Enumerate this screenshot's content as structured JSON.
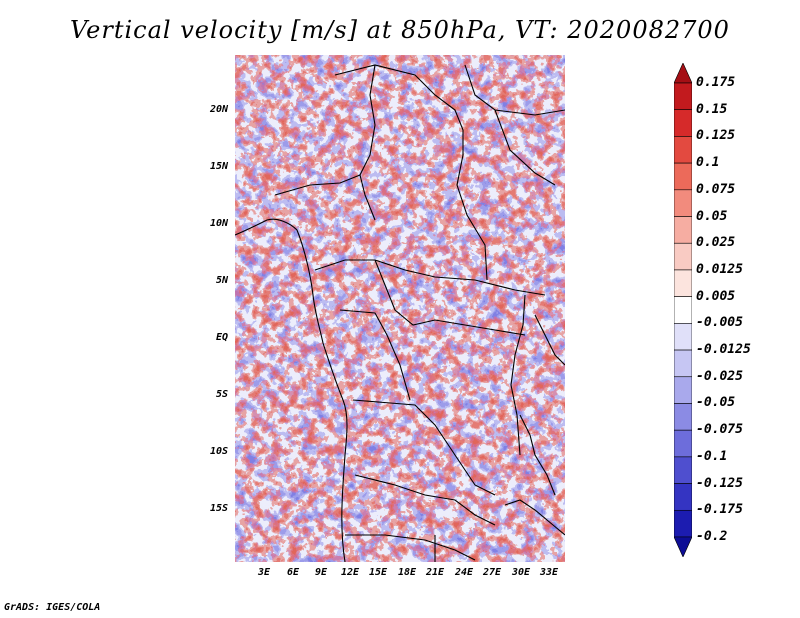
{
  "title": "Vertical velocity [m/s] at 850hPa, VT: 2020082700",
  "credit": "GrADS: IGES/COLA",
  "latitude_labels": [
    "20N",
    "15N",
    "10N",
    "5N",
    "EQ",
    "5S",
    "10S",
    "15S"
  ],
  "longitude_labels": [
    "3E",
    "6E",
    "9E",
    "12E",
    "15E",
    "18E",
    "21E",
    "24E",
    "27E",
    "30E",
    "33E"
  ],
  "colorbar": {
    "labels": [
      "0.175",
      "0.15",
      "0.125",
      "0.1",
      "0.075",
      "0.05",
      "0.025",
      "0.0125",
      "0.005",
      "-0.005",
      "-0.0125",
      "-0.025",
      "-0.05",
      "-0.075",
      "-0.1",
      "-0.125",
      "-0.175",
      "-0.2"
    ],
    "colors": [
      "#a50f15",
      "#c21a1e",
      "#d62a2a",
      "#e34a40",
      "#ec6a5a",
      "#f28b7d",
      "#f6ada2",
      "#f9cbc3",
      "#fce4de",
      "#ffffff",
      "#e0e0f9",
      "#c6c6f3",
      "#a9a9ec",
      "#8b8be4",
      "#6d6ddb",
      "#4f4fcf",
      "#3434c2",
      "#1c1cb0",
      "#0d0d95"
    ]
  }
}
